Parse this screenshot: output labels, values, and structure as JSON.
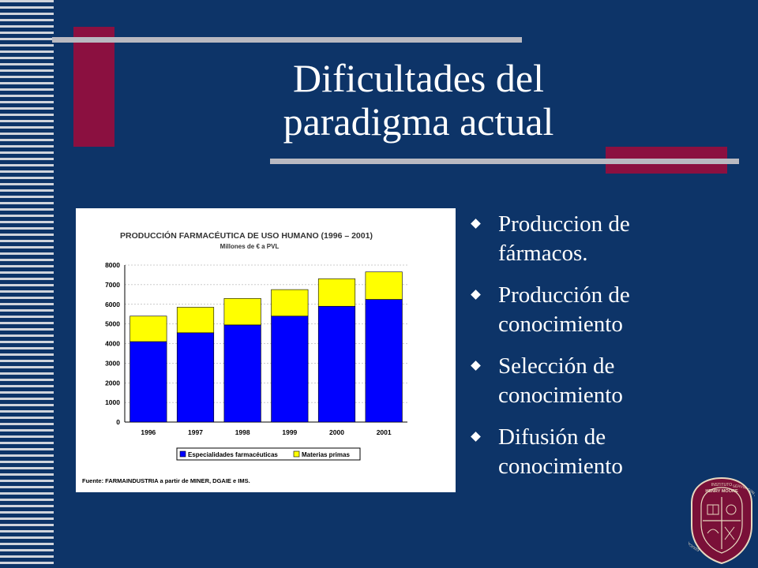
{
  "slide": {
    "title_line1": "Dificultades del",
    "title_line2": "paradigma actual",
    "bullets": [
      {
        "label": "Produccion de fármacos."
      },
      {
        "label": "Producción de conocimiento"
      },
      {
        "label": "Selección de conocimiento"
      },
      {
        "label": "Difusión de conocimiento"
      }
    ],
    "colors": {
      "background": "#0d3468",
      "accent": "#8b1040",
      "rule": "#b9b9c1"
    }
  },
  "logo": {
    "name": "instituto-henry-moore-seal",
    "text_top": "INSTITUTO",
    "text_name": "HENRY MOORE",
    "motto_left": "EDUCAR CON LA VERDAD",
    "motto_right": "SERVIR CON DEDICACION"
  },
  "chart_data": {
    "type": "bar",
    "stacked": true,
    "title": "PRODUCCIÓN FARMACÉUTICA DE USO HUMANO (1996 – 2001)",
    "subtitle": "Millones de  €  a PVL",
    "categories": [
      "1996",
      "1997",
      "1998",
      "1999",
      "2000",
      "2001"
    ],
    "series": [
      {
        "name": "Especialidades farmacéuticas",
        "color": "#0000ff",
        "values": [
          4100,
          4550,
          4950,
          5400,
          5900,
          6250
        ]
      },
      {
        "name": "Materias primas",
        "color": "#ffff00",
        "values": [
          1300,
          1300,
          1350,
          1350,
          1400,
          1400
        ]
      }
    ],
    "yticks": [
      "0",
      "1000",
      "2000",
      "3000",
      "4000",
      "5000",
      "6000",
      "7000",
      "8000"
    ],
    "ylim": [
      0,
      8000
    ],
    "grid": true,
    "legend": "bottom",
    "source": "Fuente: FARMAINDUSTRIA a partir de MINER, DGAIE e IMS."
  }
}
